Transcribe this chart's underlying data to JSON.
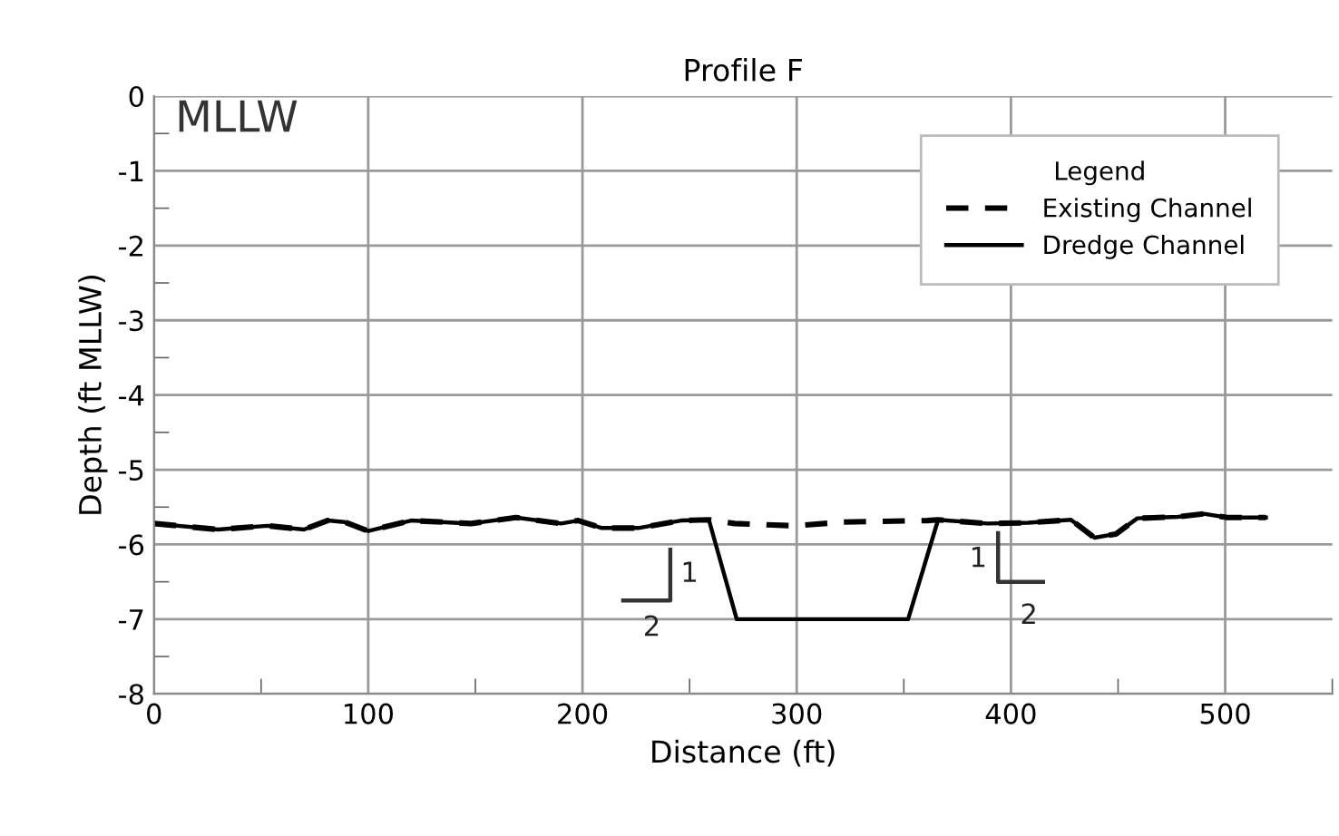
{
  "chart_data": {
    "type": "line",
    "title": "Profile F",
    "xlabel": "Distance (ft)",
    "ylabel": "Depth (ft MLLW)",
    "legend_title": "Legend",
    "legend": "top right",
    "grid": true,
    "xlim": [
      0,
      550
    ],
    "xticks": [
      0,
      {
        "value": 50,
        "label": null
      },
      100,
      {
        "value": 150,
        "label": null
      },
      200,
      {
        "value": 250,
        "label": null
      },
      300,
      {
        "value": 350,
        "label": null
      },
      400,
      {
        "value": 450,
        "label": null
      },
      500,
      {
        "value": 550,
        "label": null
      }
    ],
    "ylim": [
      -8,
      0
    ],
    "yticks": [
      0,
      {
        "value": -0.5,
        "label": null
      },
      -1,
      {
        "value": -1.5,
        "label": null
      },
      -2,
      {
        "value": -2.5,
        "label": null
      },
      -3,
      {
        "value": -3.5,
        "label": null
      },
      -4,
      {
        "value": -4.5,
        "label": null
      },
      -5,
      {
        "value": -5.5,
        "label": null
      },
      -6,
      {
        "value": -6.5,
        "label": null
      },
      -7,
      {
        "value": -7.5,
        "label": null
      },
      -8
    ],
    "series": [
      {
        "name": "Existing Channel",
        "color": "#000000",
        "line_style": "dashed",
        "x": [
          0,
          30,
          53,
          70,
          81,
          89,
          100,
          120,
          148,
          169,
          190,
          198,
          209,
          226,
          246,
          259,
          271,
          299,
          322,
          361,
          366,
          389,
          408,
          428,
          439,
          449,
          459,
          478,
          490,
          501,
          519
        ],
        "values": [
          -5.72,
          -5.8,
          -5.75,
          -5.8,
          -5.68,
          -5.7,
          -5.82,
          -5.68,
          -5.72,
          -5.64,
          -5.72,
          -5.68,
          -5.78,
          -5.78,
          -5.68,
          -5.67,
          -5.72,
          -5.75,
          -5.7,
          -5.68,
          -5.67,
          -5.72,
          -5.71,
          -5.67,
          -5.91,
          -5.86,
          -5.65,
          -5.63,
          -5.59,
          -5.64,
          -5.64
        ]
      },
      {
        "name": "Dredge Channel",
        "color": "#000000",
        "line_style": "solid",
        "x": [
          0,
          30,
          53,
          70,
          81,
          89,
          100,
          120,
          148,
          169,
          190,
          198,
          209,
          226,
          246,
          259,
          272,
          352,
          366,
          389,
          408,
          428,
          439,
          449,
          459,
          478,
          490,
          501,
          519
        ],
        "values": [
          -5.72,
          -5.8,
          -5.75,
          -5.8,
          -5.68,
          -5.7,
          -5.82,
          -5.68,
          -5.72,
          -5.64,
          -5.72,
          -5.68,
          -5.78,
          -5.78,
          -5.68,
          -5.67,
          -7.0,
          -7.0,
          -5.67,
          -5.72,
          -5.71,
          -5.67,
          -5.91,
          -5.86,
          -5.65,
          -5.63,
          -5.59,
          -5.64,
          -5.64
        ]
      }
    ],
    "annotations": [
      "MLLW",
      "1",
      "2",
      "1",
      "2"
    ]
  }
}
